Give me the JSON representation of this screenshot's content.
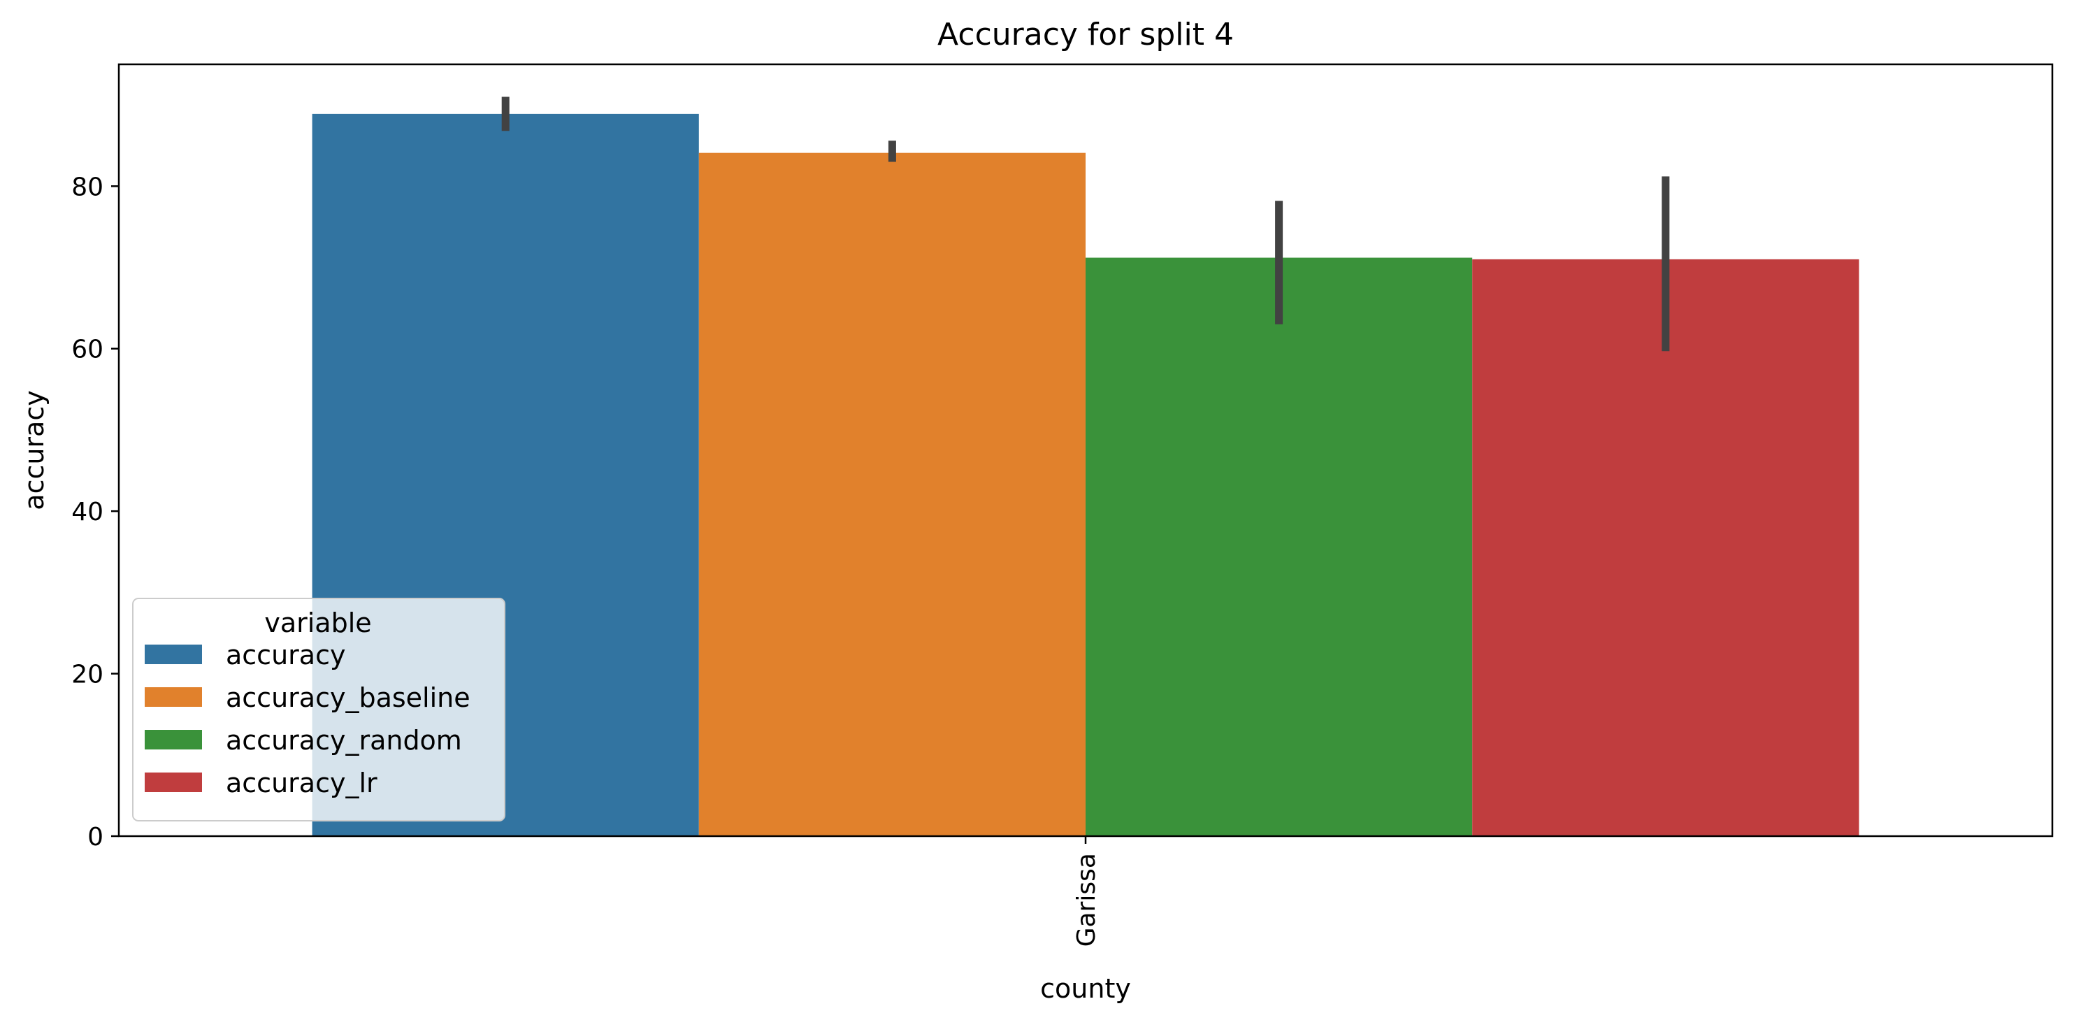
{
  "chart_data": {
    "type": "bar",
    "title": "Accuracy for split 4",
    "xlabel": "county",
    "ylabel": "accuracy",
    "categories": [
      "Garissa"
    ],
    "ylim": [
      0,
      95
    ],
    "yticks": [
      0,
      20,
      40,
      60,
      80
    ],
    "grid": false,
    "legend": {
      "title": "variable",
      "placement": "lower-left"
    },
    "series": [
      {
        "name": "accuracy",
        "color": "#3274a1",
        "values": [
          88.9
        ],
        "error": [
          [
            86.8,
            91.0
          ]
        ]
      },
      {
        "name": "accuracy_baseline",
        "color": "#e1812c",
        "values": [
          84.1
        ],
        "error": [
          [
            83.0,
            85.6
          ]
        ]
      },
      {
        "name": "accuracy_random",
        "color": "#3a923a",
        "values": [
          71.2
        ],
        "error": [
          [
            63.0,
            78.2
          ]
        ]
      },
      {
        "name": "accuracy_lr",
        "color": "#c03d3e",
        "values": [
          71.0
        ],
        "error": [
          [
            59.7,
            81.2
          ]
        ]
      }
    ],
    "error_bar_color": "#424242"
  }
}
